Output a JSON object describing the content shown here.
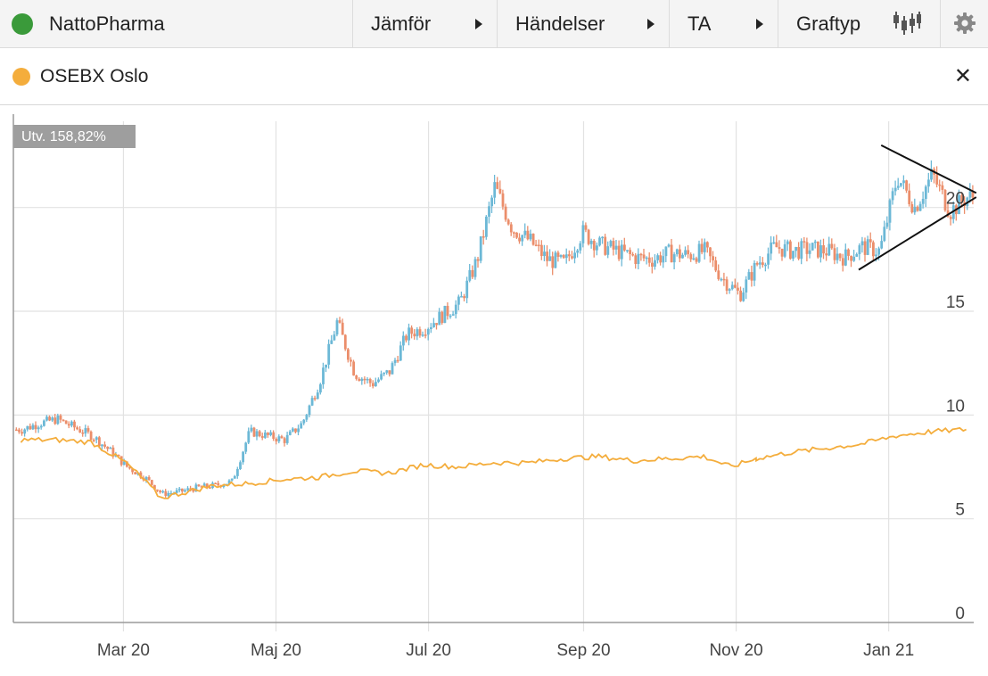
{
  "toolbar": {
    "title": "NattoPharma",
    "title_status_color": "#3a9a3a",
    "menus": [
      {
        "label": "Jämför",
        "icon": "play-arrow-icon"
      },
      {
        "label": "Händelser",
        "icon": "play-arrow-icon"
      },
      {
        "label": "TA",
        "icon": "play-arrow-icon"
      },
      {
        "label": "Graftyp",
        "icon": "candlestick-chart-icon"
      }
    ],
    "settings_icon": "gear-icon"
  },
  "compare": {
    "label": "OSEBX Oslo",
    "color": "#f4ad3c",
    "close_icon": "close-icon"
  },
  "badge": {
    "label": "Utv. 158,82%"
  },
  "chart_data": {
    "type": "candlestick",
    "x_ticks": [
      "Mar 20",
      "Maj 20",
      "Jul 20",
      "Sep 20",
      "Nov 20",
      "Jan 21"
    ],
    "y_ticks": [
      "0",
      "5",
      "10",
      "15",
      "20"
    ],
    "ylim": [
      0,
      24.5
    ],
    "grid": true,
    "up_color": "#6cb8d6",
    "down_color": "#eb8e6b",
    "series": [
      {
        "type": "candlestick",
        "close_points": [
          [
            "2020-01-20",
            9.3
          ],
          [
            "2020-01-27",
            9.6
          ],
          [
            "2020-02-03",
            9.8
          ],
          [
            "2020-02-10",
            9.4
          ],
          [
            "2020-02-17",
            9.0
          ],
          [
            "2020-02-24",
            8.3
          ],
          [
            "2020-03-02",
            7.5
          ],
          [
            "2020-03-09",
            7.0
          ],
          [
            "2020-03-16",
            6.2
          ],
          [
            "2020-03-23",
            6.3
          ],
          [
            "2020-03-30",
            6.5
          ],
          [
            "2020-04-06",
            6.6
          ],
          [
            "2020-04-13",
            6.8
          ],
          [
            "2020-04-20",
            9.2
          ],
          [
            "2020-04-27",
            9.0
          ],
          [
            "2020-05-04",
            8.8
          ],
          [
            "2020-05-11",
            9.6
          ],
          [
            "2020-05-18",
            11.6
          ],
          [
            "2020-05-25",
            14.5
          ],
          [
            "2020-06-01",
            12.0
          ],
          [
            "2020-06-08",
            11.5
          ],
          [
            "2020-06-15",
            12.1
          ],
          [
            "2020-06-22",
            13.9
          ],
          [
            "2020-06-29",
            14.2
          ],
          [
            "2020-07-06",
            14.8
          ],
          [
            "2020-07-13",
            15.4
          ],
          [
            "2020-07-20",
            17.5
          ],
          [
            "2020-07-27",
            21.0
          ],
          [
            "2020-08-03",
            19.0
          ],
          [
            "2020-08-10",
            18.4
          ],
          [
            "2020-08-17",
            17.5
          ],
          [
            "2020-08-24",
            17.3
          ],
          [
            "2020-08-31",
            18.8
          ],
          [
            "2020-09-07",
            18.2
          ],
          [
            "2020-09-14",
            17.9
          ],
          [
            "2020-09-21",
            17.6
          ],
          [
            "2020-09-28",
            17.5
          ],
          [
            "2020-10-05",
            17.8
          ],
          [
            "2020-10-12",
            17.7
          ],
          [
            "2020-10-19",
            17.9
          ],
          [
            "2020-10-26",
            16.6
          ],
          [
            "2020-11-02",
            15.8
          ],
          [
            "2020-11-09",
            17.3
          ],
          [
            "2020-11-16",
            18.1
          ],
          [
            "2020-11-23",
            17.9
          ],
          [
            "2020-11-30",
            18.0
          ],
          [
            "2020-12-07",
            17.9
          ],
          [
            "2020-12-14",
            17.6
          ],
          [
            "2020-12-21",
            18.1
          ],
          [
            "2020-12-28",
            17.9
          ],
          [
            "2021-01-04",
            21.5
          ],
          [
            "2021-01-11",
            20.0
          ],
          [
            "2021-01-18",
            21.6
          ],
          [
            "2021-01-25",
            19.8
          ],
          [
            "2021-02-01",
            20.5
          ]
        ]
      },
      {
        "name": "OSEBX Oslo",
        "type": "line",
        "color": "#f4ad3c",
        "points": [
          [
            "2020-01-20",
            8.8
          ],
          [
            "2020-02-03",
            8.8
          ],
          [
            "2020-02-17",
            8.7
          ],
          [
            "2020-02-24",
            8.2
          ],
          [
            "2020-03-02",
            7.7
          ],
          [
            "2020-03-09",
            6.9
          ],
          [
            "2020-03-16",
            6.0
          ],
          [
            "2020-03-23",
            6.2
          ],
          [
            "2020-04-06",
            6.6
          ],
          [
            "2020-04-20",
            6.7
          ],
          [
            "2020-05-04",
            6.9
          ],
          [
            "2020-05-18",
            7.0
          ],
          [
            "2020-06-01",
            7.3
          ],
          [
            "2020-06-15",
            7.2
          ],
          [
            "2020-06-29",
            7.6
          ],
          [
            "2020-07-13",
            7.5
          ],
          [
            "2020-07-27",
            7.7
          ],
          [
            "2020-08-10",
            7.7
          ],
          [
            "2020-08-24",
            7.9
          ],
          [
            "2020-09-07",
            8.0
          ],
          [
            "2020-09-21",
            7.8
          ],
          [
            "2020-10-05",
            7.9
          ],
          [
            "2020-10-19",
            8.0
          ],
          [
            "2020-10-30",
            7.5
          ],
          [
            "2020-11-09",
            7.9
          ],
          [
            "2020-11-23",
            8.2
          ],
          [
            "2020-12-07",
            8.4
          ],
          [
            "2020-12-21",
            8.6
          ],
          [
            "2021-01-04",
            9.0
          ],
          [
            "2021-01-18",
            9.2
          ],
          [
            "2021-02-01",
            9.3
          ]
        ]
      }
    ],
    "annotations": [
      {
        "type": "trendline",
        "from": [
          "2020-12-20",
          17.0
        ],
        "to": [
          "2021-02-05",
          20.5
        ]
      },
      {
        "type": "trendline",
        "from": [
          "2020-12-29",
          23.0
        ],
        "to": [
          "2021-02-05",
          20.7
        ]
      }
    ]
  }
}
